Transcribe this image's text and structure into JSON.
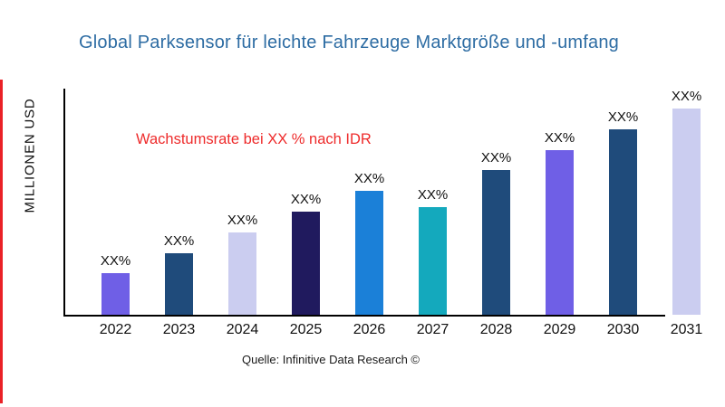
{
  "accent_color": "#ea2127",
  "title": {
    "text": "Global Parksensor für leichte Fahrzeuge Marktgröße und -umfang",
    "color": "#2d6ca3"
  },
  "y_axis_label": "MILLIONEN USD",
  "growth_note": {
    "text": "Wachstumsrate bei XX % nach IDR",
    "color": "#ee2b2b"
  },
  "source": "Quelle: Infinitive Data Research ©",
  "chart_data": {
    "type": "bar",
    "title": "Global Parksensor für leichte Fahrzeuge Marktgröße und -umfang",
    "xlabel": "",
    "ylabel": "MILLIONEN USD",
    "categories": [
      "2022",
      "2023",
      "2024",
      "2025",
      "2026",
      "2027",
      "2028",
      "2029",
      "2030",
      "2031"
    ],
    "values": [
      20,
      30,
      40,
      50,
      60,
      52,
      70,
      80,
      90,
      100
    ],
    "value_note": "actual values masked in chart; heights relative, percent of tallest bar (2031 = 100)",
    "bar_labels": [
      "XX%",
      "XX%",
      "XX%",
      "XX%",
      "XX%",
      "XX%",
      "XX%",
      "XX%",
      "XX%",
      "XX%"
    ],
    "bar_colors": [
      "#6f5fe6",
      "#1f4b7b",
      "#cbcdf0",
      "#201a5e",
      "#1b80d8",
      "#14a9bd",
      "#1f4b7b",
      "#6f5fe6",
      "#1f4b7b",
      "#cbcdf0"
    ],
    "ylim": [
      0,
      100
    ],
    "grid": false,
    "legend": false,
    "annotations": [
      "Wachstumsrate bei XX % nach IDR"
    ]
  }
}
